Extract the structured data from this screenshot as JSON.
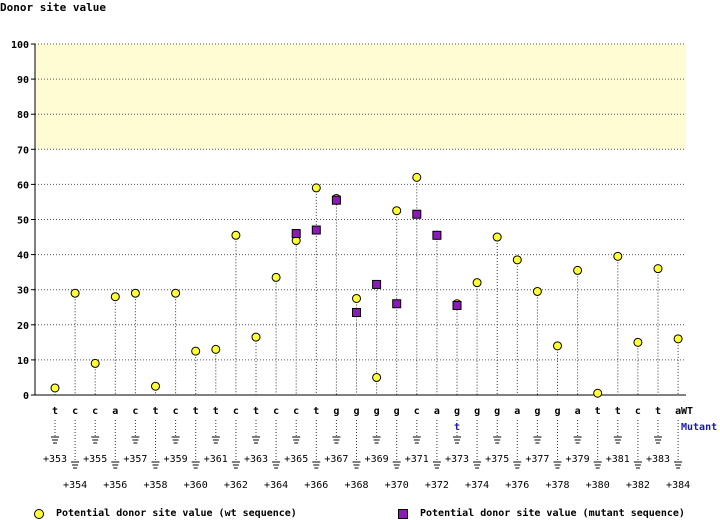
{
  "chart_data": {
    "type": "scatter",
    "ylabel": "Donor site value",
    "ylim": [
      0,
      100
    ],
    "yticks": [
      0,
      10,
      20,
      30,
      40,
      50,
      60,
      70,
      80,
      90,
      100
    ],
    "highlight_band": [
      70,
      100
    ],
    "row_labels": {
      "wt": "WT",
      "mutant": "Mutant"
    },
    "positions": [
      "+353",
      "+354",
      "+355",
      "+356",
      "+357",
      "+358",
      "+359",
      "+360",
      "+361",
      "+362",
      "+363",
      "+364",
      "+365",
      "+366",
      "+367",
      "+368",
      "+369",
      "+370",
      "+371",
      "+372",
      "+373",
      "+374",
      "+375",
      "+376",
      "+377",
      "+378",
      "+379",
      "+380",
      "+381",
      "+382",
      "+383",
      "+384"
    ],
    "wt_bases": [
      "t",
      "c",
      "c",
      "a",
      "c",
      "t",
      "c",
      "t",
      "t",
      "c",
      "t",
      "c",
      "c",
      "t",
      "g",
      "g",
      "g",
      "g",
      "c",
      "a",
      "g",
      "g",
      "g",
      "a",
      "g",
      "g",
      "a",
      "t",
      "t",
      "c",
      "t",
      "a"
    ],
    "mutant_bases": [
      "",
      "",
      "",
      "",
      "",
      "",
      "",
      "",
      "",
      "",
      "",
      "",
      "",
      "",
      "",
      "",
      "",
      "",
      "",
      "",
      "t",
      "",
      "",
      "",
      "",
      "",
      "",
      "",
      "",
      "",
      "",
      ""
    ],
    "series": [
      {
        "name": "Potential donor site value (wt sequence)",
        "marker": "circle",
        "color": "#ffff33",
        "values": [
          2,
          29,
          9,
          28,
          29,
          2.5,
          29,
          12.5,
          13,
          45.5,
          16.5,
          33.5,
          44,
          59,
          56,
          27.5,
          5,
          52.5,
          62,
          45.5,
          26,
          32,
          45,
          38.5,
          29.5,
          14,
          35.5,
          0.5,
          39.5,
          15,
          36,
          16
        ]
      },
      {
        "name": "Potential donor site value (mutant sequence)",
        "marker": "square",
        "color": "#8c1ab8",
        "values": [
          null,
          null,
          null,
          null,
          null,
          null,
          null,
          null,
          null,
          null,
          null,
          null,
          46,
          47,
          55.5,
          23.5,
          31.5,
          26,
          51.5,
          45.5,
          25.5,
          null,
          null,
          null,
          null,
          null,
          null,
          null,
          null,
          null,
          null,
          null
        ]
      }
    ]
  }
}
